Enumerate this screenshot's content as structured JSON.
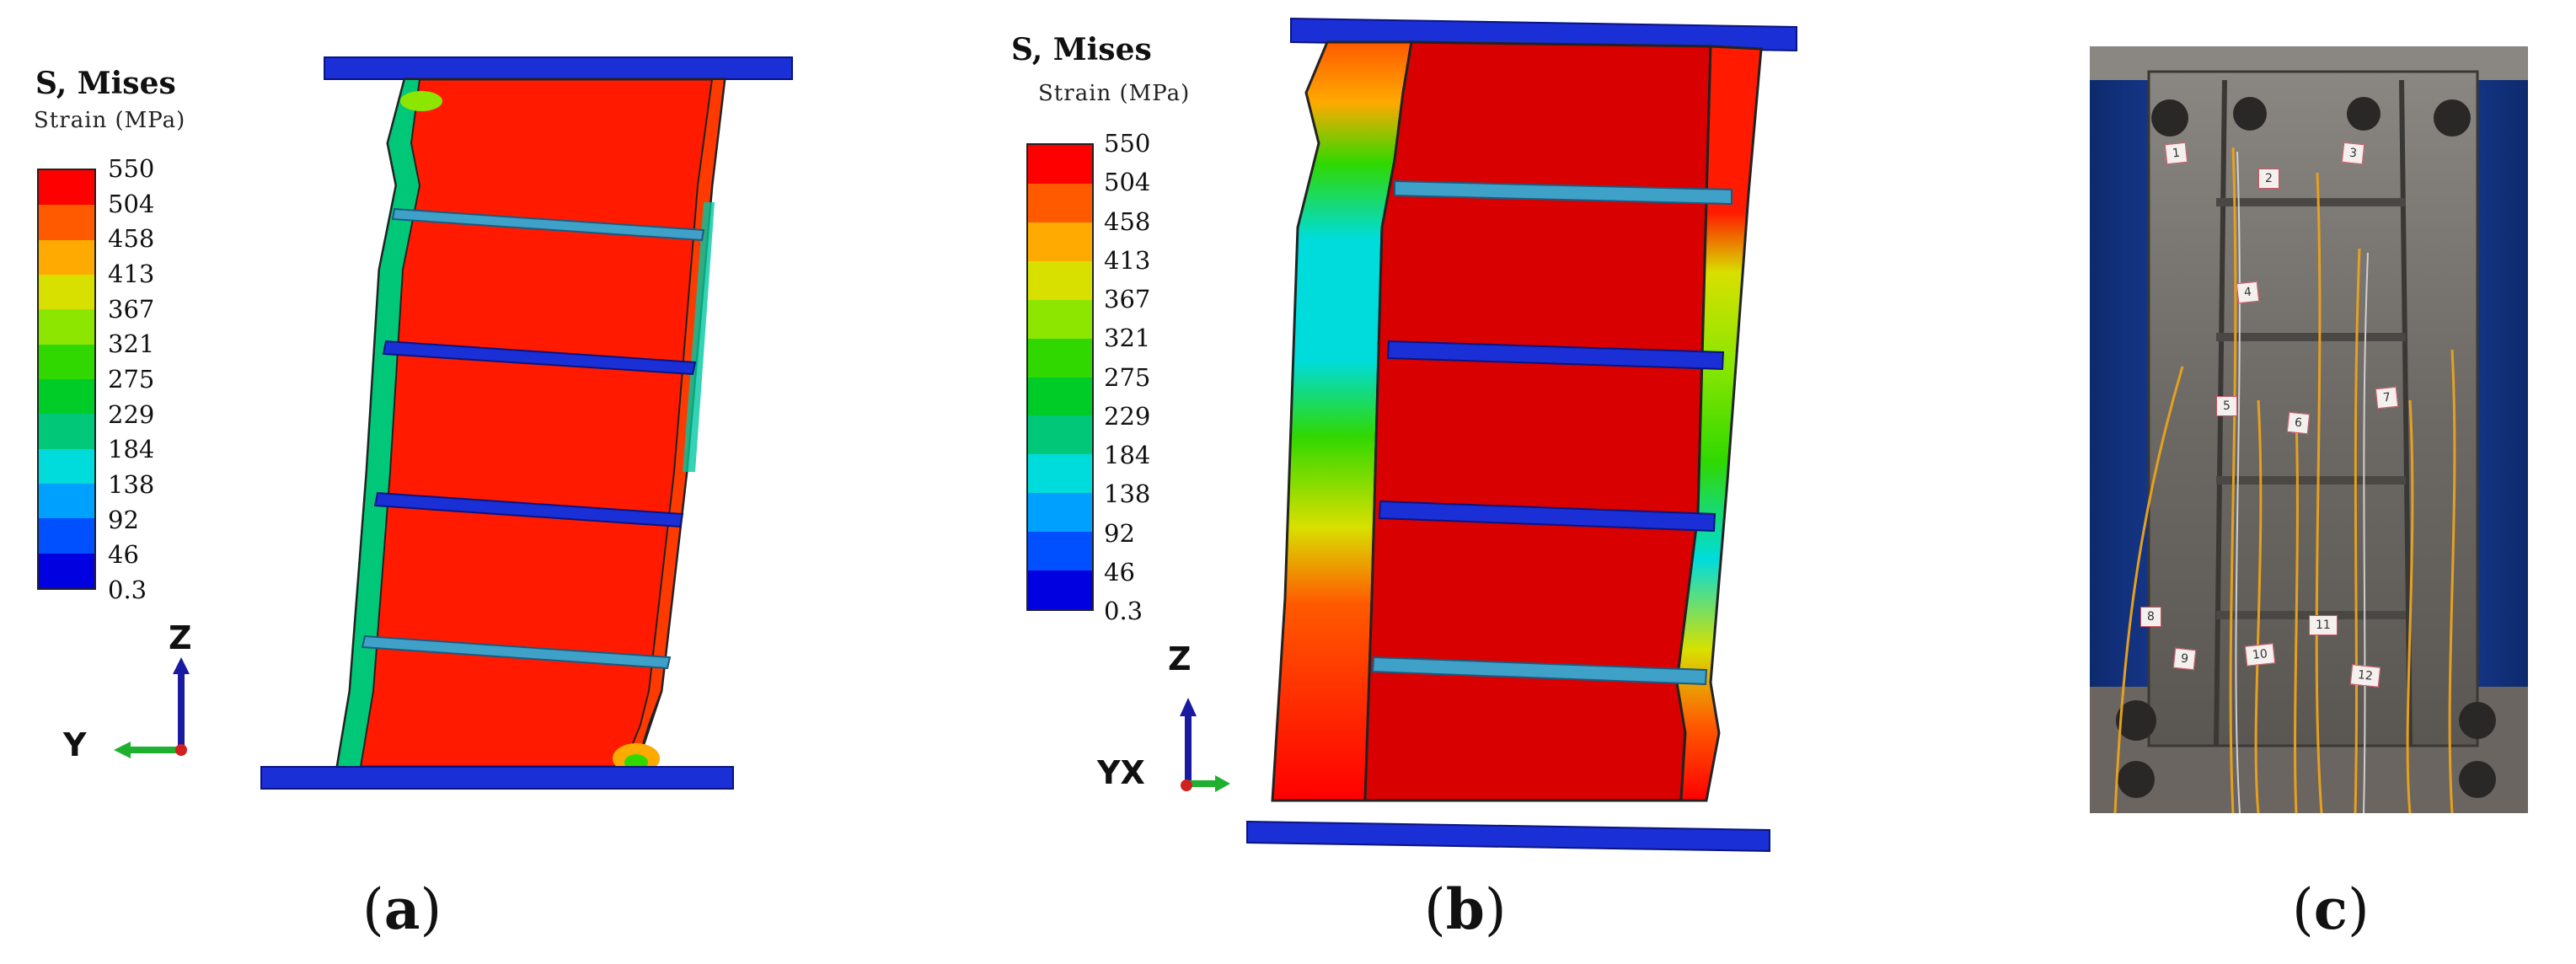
{
  "panels": [
    {
      "id": "a",
      "label": "a",
      "legend": {
        "title": "S, Mises",
        "subtitle": "Strain (MPa)",
        "ticks": [
          "550",
          "504",
          "458",
          "413",
          "367",
          "321",
          "275",
          "229",
          "184",
          "138",
          "92",
          "46",
          "0.3"
        ]
      },
      "axes": {
        "vertical": "Z",
        "horizontal": "Y"
      }
    },
    {
      "id": "b",
      "label": "b",
      "legend": {
        "title": "S, Mises",
        "subtitle": "Strain (MPa)",
        "ticks": [
          "550",
          "504",
          "458",
          "413",
          "367",
          "321",
          "275",
          "229",
          "184",
          "138",
          "92",
          "46",
          "0.3"
        ]
      },
      "axes": {
        "vertical": "Z",
        "horizontal": "YX"
      }
    },
    {
      "id": "c",
      "label": "c",
      "photo_tags": [
        "1",
        "2",
        "3",
        "4",
        "5",
        "6",
        "7",
        "8",
        "9",
        "10",
        "11",
        "12"
      ]
    }
  ],
  "colors": {
    "scale": [
      "#ff0000",
      "#ff5a00",
      "#ffaa00",
      "#d8e000",
      "#8ce600",
      "#30d800",
      "#00cc28",
      "#00c878",
      "#00dcdc",
      "#00a0ff",
      "#0050ff",
      "#0000e0"
    ],
    "plate": "#1a2fd6",
    "stiffener": "#3fa0c8",
    "outline": "#222222"
  }
}
